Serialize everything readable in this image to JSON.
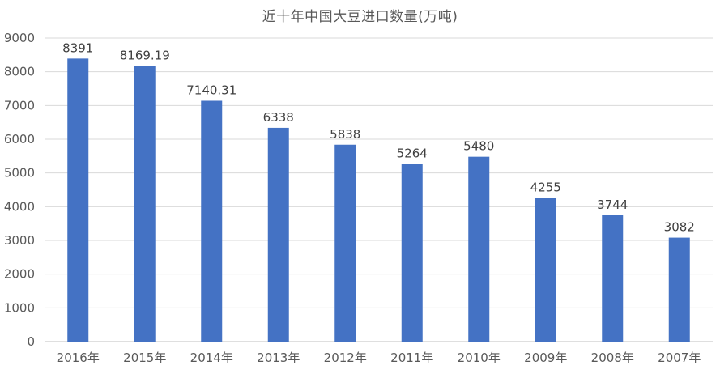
{
  "chart_data": {
    "type": "bar",
    "title": "近十年中国大豆进口数量(万吨)",
    "categories": [
      "2016年",
      "2015年",
      "2014年",
      "2013年",
      "2012年",
      "2011年",
      "2010年",
      "2009年",
      "2008年",
      "2007年"
    ],
    "values": [
      8391,
      8169.19,
      7140.31,
      6338,
      5838,
      5264,
      5480,
      4255,
      3744,
      3082
    ],
    "value_labels": [
      "8391",
      "8169.19",
      "7140.31",
      "6338",
      "5838",
      "5264",
      "5480",
      "4255",
      "3744",
      "3082"
    ],
    "ylim": [
      0,
      9000
    ],
    "yticks": [
      "0",
      "1000",
      "2000",
      "3000",
      "4000",
      "5000",
      "6000",
      "7000",
      "8000",
      "9000"
    ],
    "grid": true,
    "bar_color": "#4472c4"
  }
}
